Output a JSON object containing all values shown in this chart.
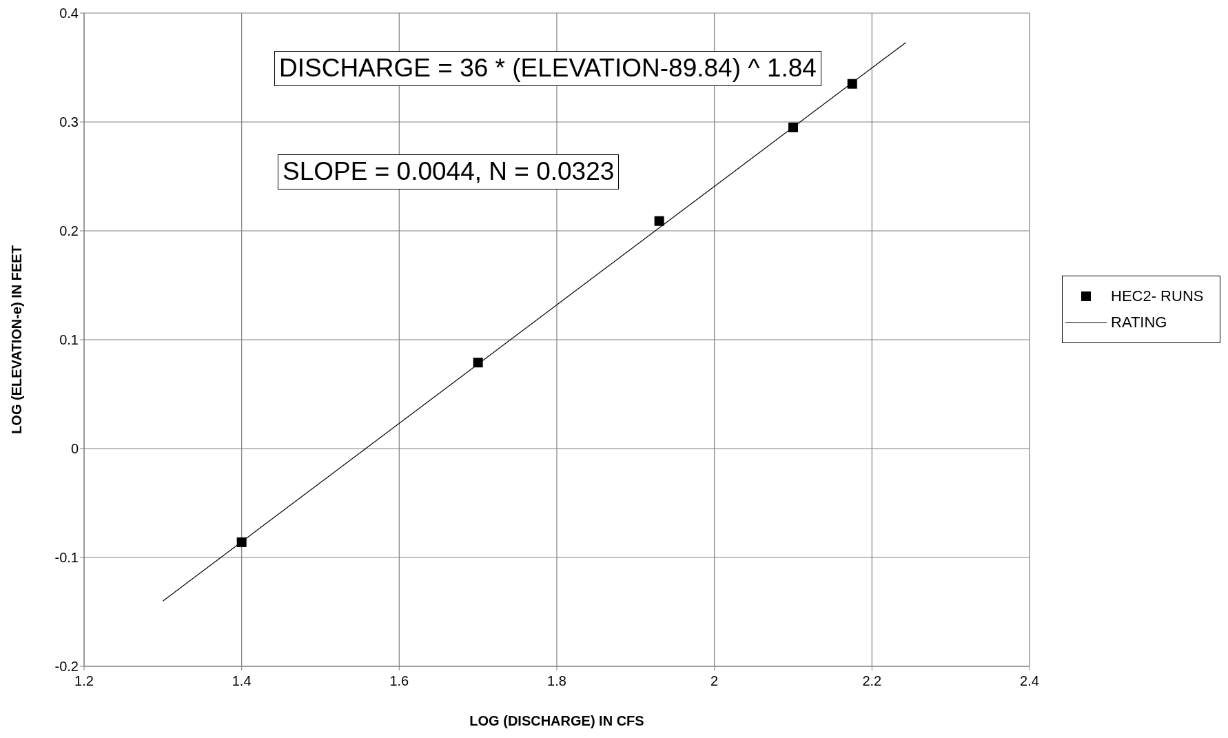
{
  "chart_data": {
    "type": "scatter",
    "xlabel": "LOG (DISCHARGE) IN CFS",
    "ylabel": "LOG (ELEVATION-e) IN FEET",
    "annotations": [
      "DISCHARGE = 36 * (ELEVATION-89.84) ^ 1.84",
      "SLOPE = 0.0044, N = 0.0323"
    ],
    "series": [
      {
        "name": "HEC2- RUNS",
        "color": "#000000",
        "marker": "square",
        "x": [
          1.4,
          1.7,
          1.93,
          2.1,
          2.175
        ],
        "values": [
          -0.086,
          0.079,
          0.209,
          0.295,
          0.335
        ]
      },
      {
        "name": "RATING",
        "type": "line",
        "color": "#000000",
        "marker": "none",
        "x": [
          1.3,
          2.243
        ],
        "values": [
          -0.14,
          0.373
        ]
      }
    ],
    "xlim": [
      1.2,
      2.4
    ],
    "xticks": [
      1.2,
      1.4,
      1.6,
      1.8,
      2,
      2.2,
      2.4
    ],
    "ylim": [
      -0.2,
      0.4
    ],
    "yticks": [
      -0.2,
      -0.1,
      0,
      0.1,
      0.2,
      0.3,
      0.4
    ],
    "grid": true,
    "legend": "right"
  }
}
